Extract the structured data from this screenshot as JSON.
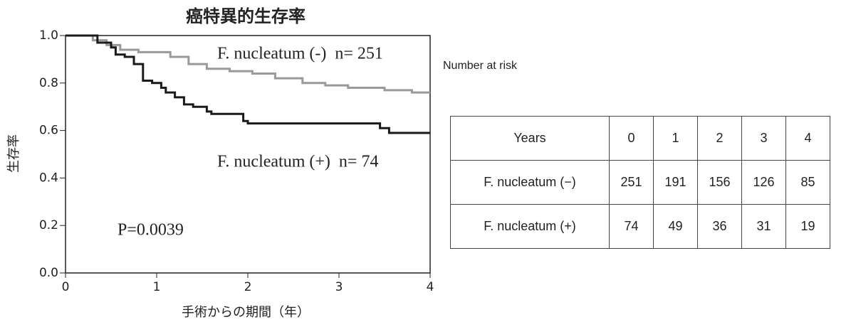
{
  "chart_data": {
    "type": "line",
    "title": "癌特異的生存率",
    "x_label": "手術からの期間（年）",
    "y_label": "生存率",
    "xlim": [
      0,
      4
    ],
    "xticks": [
      0,
      1,
      2,
      3,
      4
    ],
    "ylim": [
      0,
      1
    ],
    "yticks": [
      {
        "value": 0,
        "label": "0.0"
      },
      0.2,
      0.4,
      0.6,
      0.8,
      {
        "value": 1,
        "label": "1.0"
      }
    ],
    "series": [
      {
        "name": "F. nucleatum (-)  n= 251",
        "color": "#999999",
        "x": [
          0,
          0.3,
          0.3,
          0.45,
          0.45,
          0.6,
          0.6,
          0.8,
          0.8,
          1.15,
          1.15,
          1.35,
          1.35,
          1.55,
          1.55,
          1.8,
          1.8,
          2.05,
          2.05,
          2.3,
          2.3,
          2.6,
          2.6,
          2.85,
          2.85,
          3.1,
          3.1,
          3.5,
          3.5,
          3.8,
          3.8,
          4.0
        ],
        "values": [
          1,
          1,
          0.98,
          0.98,
          0.96,
          0.96,
          0.94,
          0.94,
          0.93,
          0.93,
          0.91,
          0.91,
          0.88,
          0.88,
          0.86,
          0.86,
          0.85,
          0.85,
          0.84,
          0.84,
          0.82,
          0.82,
          0.8,
          0.8,
          0.79,
          0.79,
          0.78,
          0.78,
          0.77,
          0.77,
          0.76,
          0.76
        ]
      },
      {
        "name": "F. nucleatum (+)  n= 74",
        "color": "#1a1a1a",
        "x": [
          0,
          0.35,
          0.35,
          0.5,
          0.5,
          0.55,
          0.55,
          0.65,
          0.65,
          0.75,
          0.75,
          0.85,
          0.85,
          0.95,
          0.95,
          1.05,
          1.05,
          1.1,
          1.1,
          1.2,
          1.2,
          1.3,
          1.3,
          1.4,
          1.4,
          1.55,
          1.55,
          1.6,
          1.6,
          1.95,
          1.95,
          2.0,
          2.0,
          3.45,
          3.45,
          3.55,
          3.55,
          4.0
        ],
        "values": [
          1,
          1,
          0.97,
          0.97,
          0.95,
          0.95,
          0.92,
          0.92,
          0.91,
          0.91,
          0.88,
          0.88,
          0.81,
          0.81,
          0.8,
          0.8,
          0.78,
          0.78,
          0.76,
          0.76,
          0.74,
          0.74,
          0.71,
          0.71,
          0.7,
          0.7,
          0.68,
          0.68,
          0.67,
          0.67,
          0.64,
          0.64,
          0.63,
          0.63,
          0.61,
          0.61,
          0.59,
          0.59
        ]
      }
    ],
    "annotations": [
      "P=0.0039"
    ]
  },
  "table": {
    "caption": "Number at risk",
    "header": [
      "Years",
      "0",
      "1",
      "2",
      "3",
      "4"
    ],
    "rows": [
      [
        "F. nucleatum (−)",
        251,
        191,
        156,
        126,
        85
      ],
      [
        "F. nucleatum (+)",
        74,
        49,
        36,
        31,
        19
      ]
    ]
  }
}
